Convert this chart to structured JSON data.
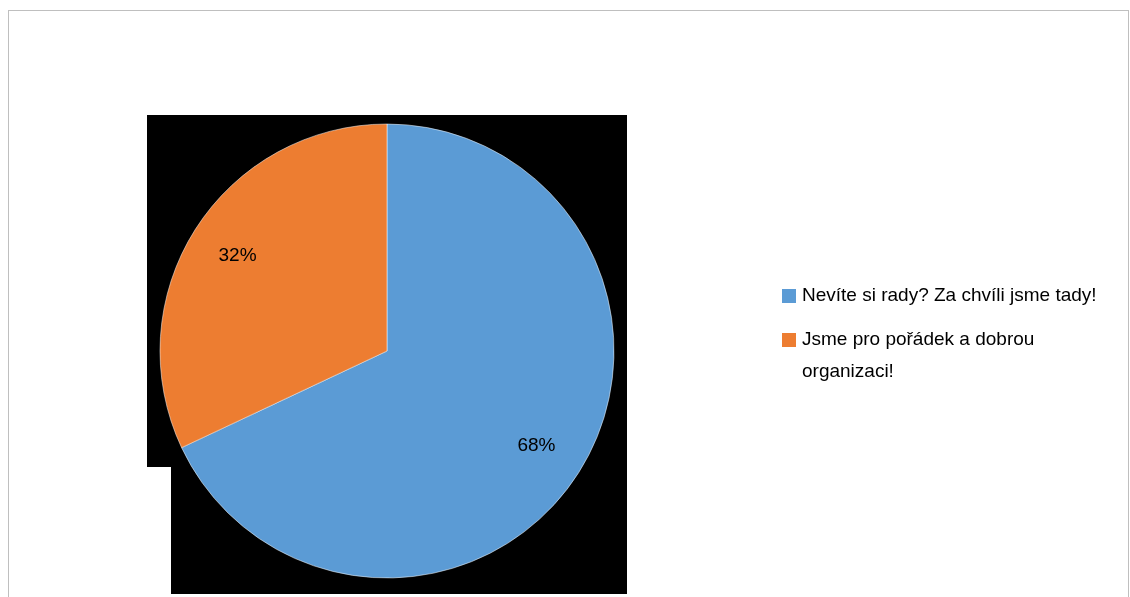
{
  "chart_data": {
    "type": "pie",
    "categories": [
      "Nevíte si rady? Za chvíli jsme tady!",
      "Jsme pro pořádek a dobrou organizaci!"
    ],
    "values": [
      68,
      32
    ],
    "colors": [
      "#5b9bd5",
      "#ed7d31"
    ],
    "value_labels": [
      "68%",
      "32%"
    ],
    "legend": "right"
  }
}
